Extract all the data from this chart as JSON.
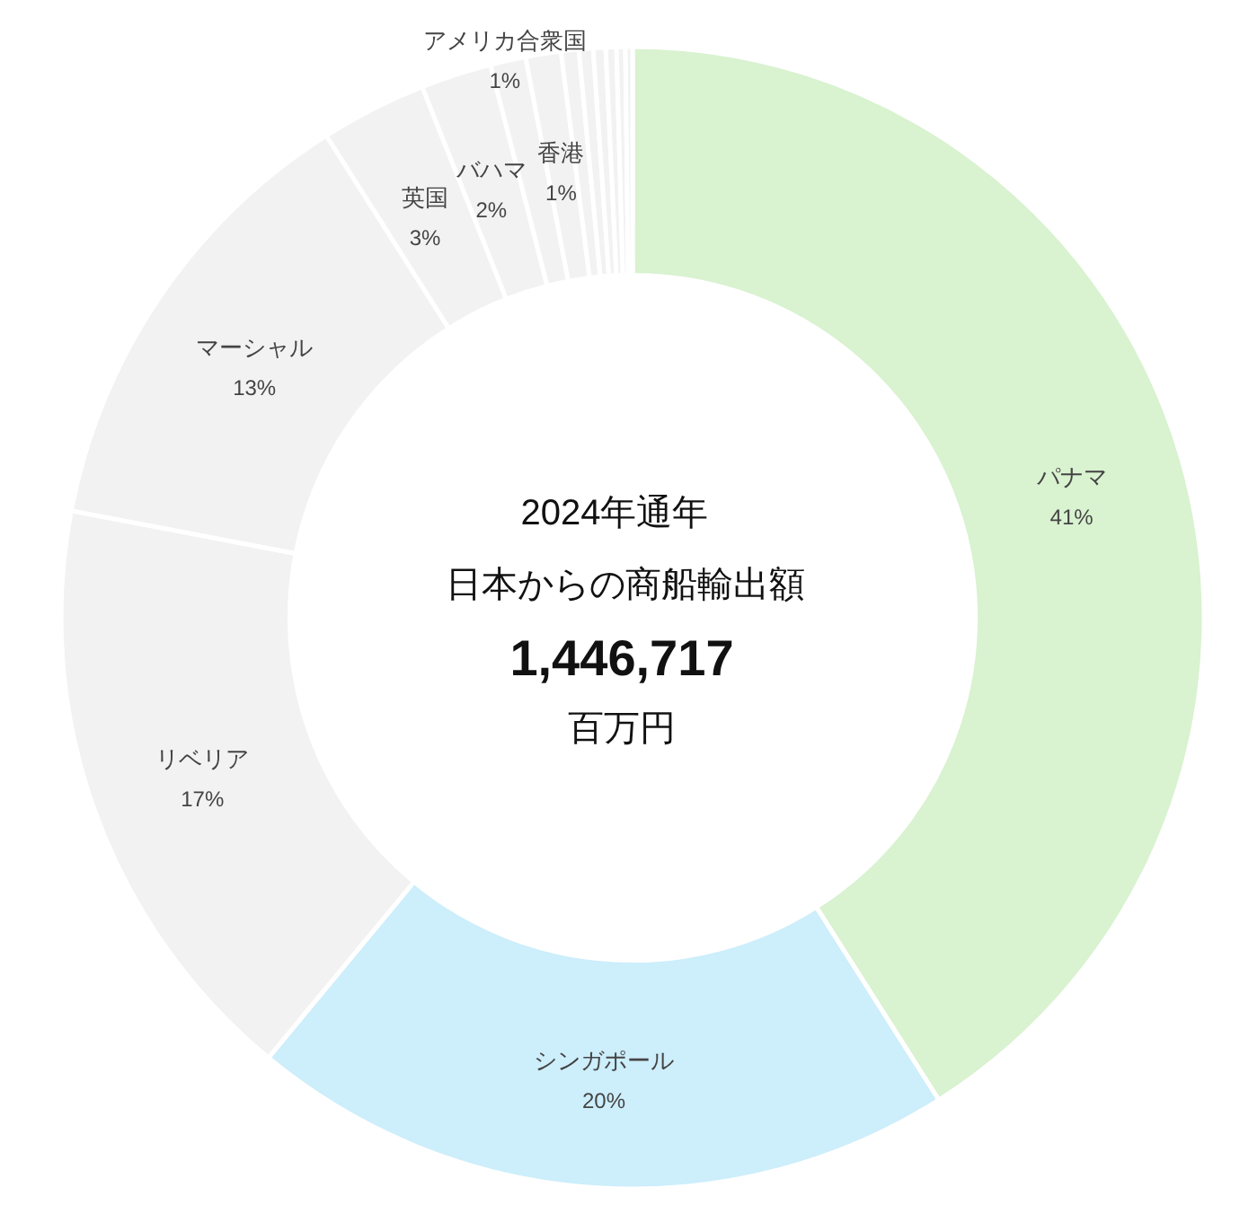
{
  "chart_data": {
    "type": "donut",
    "title": "2024年通年",
    "subtitle": "日本からの商船輸出額",
    "annotations": [
      "1,446,717",
      "百万円"
    ],
    "categories": [
      "パナマ",
      "シンガポール",
      "リベリア",
      "マーシャル",
      "英国",
      "バハマ",
      "アメリカ合衆国",
      "香港",
      null,
      null,
      null,
      null,
      null,
      null
    ],
    "values": [
      41,
      20,
      17,
      13,
      3,
      2,
      1,
      1,
      0.5,
      0.4,
      0.35,
      0.3,
      0.25,
      0.2
    ],
    "value_labels": [
      "41%",
      "20%",
      "17%",
      "13%",
      "3%",
      "2%",
      "1%",
      "1%",
      null,
      null,
      null,
      null,
      null,
      null
    ],
    "colors": [
      "#d9f2d0",
      "#cdeefb",
      "#f2f2f2",
      "#f2f2f2",
      "#f2f2f2",
      "#f2f2f2",
      "#f2f2f2",
      "#f2f2f2",
      "#f2f2f2",
      "#f2f2f2",
      "#f2f2f2",
      "#f2f2f2",
      "#f2f2f2",
      "#f2f2f2"
    ]
  }
}
